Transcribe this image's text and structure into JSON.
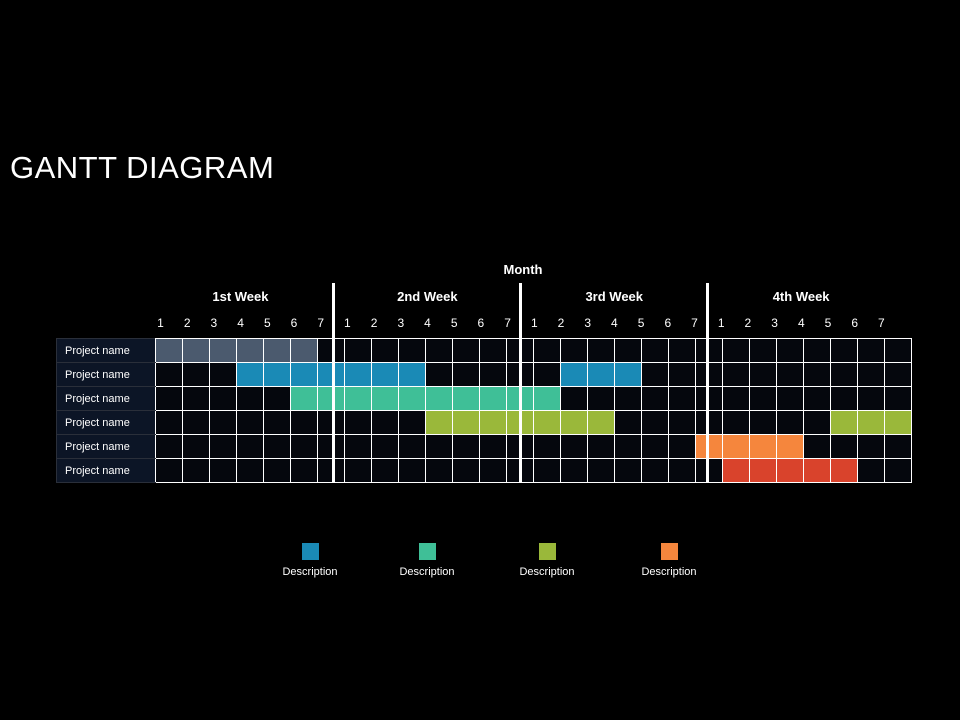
{
  "title": "GANTT DIAGRAM",
  "month_label": "Month",
  "weeks": [
    "1st Week",
    "2nd Week",
    "3rd Week",
    "4th Week"
  ],
  "days": [
    "1",
    "2",
    "3",
    "4",
    "5",
    "6",
    "7"
  ],
  "colors": {
    "gray": "#4b5a6e",
    "blue": "#1a8ab6",
    "teal": "#3fbf97",
    "green": "#9ab83a",
    "orange": "#f5863d",
    "red": "#d9432c"
  },
  "rows": [
    {
      "name": "Project name",
      "bars": [
        {
          "start": 1,
          "end": 6,
          "color": "gray"
        }
      ]
    },
    {
      "name": "Project name",
      "bars": [
        {
          "start": 4,
          "end": 10,
          "color": "blue"
        },
        {
          "start": 16,
          "end": 18,
          "color": "blue"
        }
      ]
    },
    {
      "name": "Project name",
      "bars": [
        {
          "start": 6,
          "end": 15,
          "color": "teal"
        }
      ]
    },
    {
      "name": "Project name",
      "bars": [
        {
          "start": 11,
          "end": 17,
          "color": "green"
        },
        {
          "start": 26,
          "end": 28,
          "color": "green"
        }
      ]
    },
    {
      "name": "Project name",
      "bars": [
        {
          "start": 21,
          "end": 24,
          "color": "orange"
        }
      ]
    },
    {
      "name": "Project name",
      "bars": [
        {
          "start": 22,
          "end": 26,
          "color": "red"
        }
      ]
    }
  ],
  "legend": [
    {
      "label": "Description",
      "color": "blue"
    },
    {
      "label": "Description",
      "color": "teal"
    },
    {
      "label": "Description",
      "color": "green"
    },
    {
      "label": "Description",
      "color": "orange"
    }
  ]
}
